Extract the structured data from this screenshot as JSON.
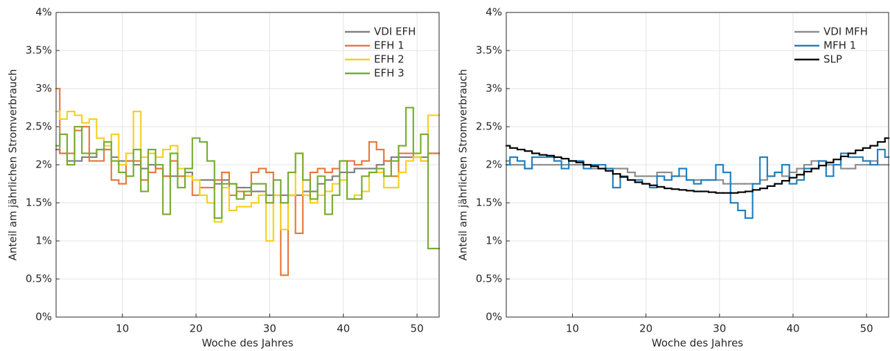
{
  "chart_data": [
    {
      "type": "stairs",
      "xlabel": "Woche des Jahres",
      "ylabel": "Anteil am jährlichen Stromverbrauch",
      "xlim": [
        1,
        53
      ],
      "xticks": [
        10,
        20,
        30,
        40,
        50
      ],
      "ylim": [
        0,
        4
      ],
      "yticks": [
        {
          "value": 0,
          "label": "0%"
        },
        {
          "value": 0.5,
          "label": "0.5%"
        },
        {
          "value": 1,
          "label": "1%"
        },
        {
          "value": 1.5,
          "label": "1.5%"
        },
        {
          "value": 2,
          "label": "2%"
        },
        {
          "value": 2.5,
          "label": "2.5%"
        },
        {
          "value": 3,
          "label": "3%"
        },
        {
          "value": 3.5,
          "label": "3.5%"
        },
        {
          "value": 4,
          "label": "4%"
        }
      ],
      "grid": true,
      "legend": "top-right",
      "series": [
        {
          "name": "VDI EFH",
          "color": "#808080",
          "values": [
            2.2,
            2.15,
            2.05,
            2.05,
            2.1,
            2.1,
            2.2,
            2.2,
            2.1,
            2.05,
            2.05,
            2.0,
            1.95,
            2.0,
            1.95,
            1.85,
            1.85,
            1.85,
            1.9,
            1.8,
            1.8,
            1.8,
            1.75,
            1.8,
            1.75,
            1.7,
            1.7,
            1.65,
            1.65,
            1.6,
            1.6,
            1.6,
            1.6,
            1.6,
            1.65,
            1.65,
            1.75,
            1.8,
            1.85,
            1.9,
            1.9,
            1.95,
            1.95,
            1.95,
            2.0,
            2.05,
            2.1,
            2.1,
            2.1,
            2.1,
            2.1,
            2.15,
            2.15
          ]
        },
        {
          "name": "EFH 1",
          "color": "#e8773a",
          "values": [
            3.0,
            2.15,
            2.15,
            2.45,
            2.5,
            2.05,
            2.05,
            2.2,
            1.8,
            1.75,
            2.05,
            2.05,
            1.8,
            1.9,
            1.95,
            1.85,
            2.05,
            1.85,
            1.85,
            1.6,
            1.7,
            1.7,
            1.8,
            1.9,
            1.6,
            1.65,
            1.6,
            1.9,
            1.95,
            1.9,
            1.6,
            0.55,
            1.6,
            1.1,
            1.6,
            1.9,
            1.95,
            1.9,
            1.95,
            2.05,
            2.05,
            2.0,
            2.05,
            2.3,
            2.2,
            2.05,
            1.85,
            2.15,
            2.15,
            2.1,
            2.05,
            2.15,
            2.15
          ]
        },
        {
          "name": "EFH 2",
          "color": "#f7cf1d",
          "values": [
            2.7,
            2.6,
            2.7,
            2.65,
            2.55,
            2.6,
            2.35,
            2.25,
            2.4,
            2.0,
            2.15,
            2.7,
            2.1,
            2.15,
            2.1,
            2.2,
            2.25,
            1.95,
            1.85,
            1.8,
            1.6,
            1.5,
            1.25,
            1.7,
            1.4,
            1.45,
            1.45,
            1.5,
            1.6,
            1.0,
            1.6,
            1.15,
            1.6,
            2.15,
            1.6,
            1.5,
            1.6,
            1.65,
            1.75,
            1.8,
            1.55,
            1.6,
            1.65,
            1.9,
            1.9,
            1.7,
            1.7,
            1.9,
            2.05,
            2.1,
            2.05,
            2.65,
            2.65
          ]
        },
        {
          "name": "EFH 3",
          "color": "#77ac30",
          "values": [
            2.25,
            2.4,
            2.0,
            2.5,
            2.15,
            2.15,
            2.2,
            2.3,
            2.05,
            1.9,
            1.85,
            2.2,
            1.65,
            2.2,
            2.0,
            1.35,
            2.15,
            1.7,
            1.95,
            2.35,
            2.3,
            2.05,
            1.3,
            1.75,
            1.75,
            1.55,
            1.65,
            1.75,
            1.75,
            1.5,
            1.8,
            1.5,
            1.9,
            2.15,
            1.8,
            1.55,
            1.85,
            1.35,
            1.6,
            2.05,
            1.55,
            1.55,
            1.85,
            1.9,
            1.95,
            1.85,
            2.05,
            2.25,
            2.75,
            2.15,
            2.4,
            0.9,
            0.9
          ]
        }
      ]
    },
    {
      "type": "stairs",
      "xlabel": "Woche des Jahres",
      "ylabel": "Anteil am jährlichen Stromverbrauch",
      "xlim": [
        1,
        53
      ],
      "xticks": [
        10,
        20,
        30,
        40,
        50
      ],
      "ylim": [
        0,
        4
      ],
      "yticks": [
        {
          "value": 0,
          "label": "0%"
        },
        {
          "value": 0.5,
          "label": "0.5%"
        },
        {
          "value": 1,
          "label": "1%"
        },
        {
          "value": 1.5,
          "label": "1.5%"
        },
        {
          "value": 2,
          "label": "2%"
        },
        {
          "value": 2.5,
          "label": "2.5%"
        },
        {
          "value": 3,
          "label": "3%"
        },
        {
          "value": 3.5,
          "label": "3.5%"
        },
        {
          "value": 4,
          "label": "4%"
        }
      ],
      "grid": true,
      "legend": "top-right",
      "series": [
        {
          "name": "VDI MFH",
          "color": "#8c8c8c",
          "values": [
            2.05,
            2.0,
            2.0,
            1.95,
            2.0,
            2.0,
            2.0,
            2.0,
            2.0,
            2.0,
            2.0,
            2.0,
            1.95,
            1.95,
            1.95,
            1.95,
            1.95,
            1.9,
            1.85,
            1.85,
            1.85,
            1.9,
            1.9,
            1.85,
            1.85,
            1.8,
            1.8,
            1.8,
            1.8,
            1.8,
            1.75,
            1.75,
            1.75,
            1.75,
            1.75,
            1.8,
            1.85,
            1.9,
            1.85,
            1.9,
            1.95,
            2.0,
            2.05,
            2.05,
            2.0,
            2.0,
            1.95,
            1.95,
            2.0,
            2.0,
            2.05,
            2.0,
            2.0
          ]
        },
        {
          "name": "MFH 1",
          "color": "#1f7fc0",
          "values": [
            2.0,
            2.1,
            2.05,
            1.95,
            2.1,
            2.1,
            2.1,
            2.05,
            1.95,
            2.05,
            2.05,
            1.95,
            2.0,
            2.0,
            1.95,
            1.7,
            1.85,
            1.8,
            1.8,
            1.75,
            1.7,
            1.85,
            1.8,
            1.85,
            1.95,
            1.8,
            1.75,
            1.8,
            1.8,
            2.0,
            1.9,
            1.5,
            1.4,
            1.3,
            1.75,
            2.1,
            1.85,
            1.9,
            2.0,
            1.75,
            1.8,
            1.95,
            1.95,
            2.05,
            1.85,
            2.0,
            2.15,
            2.1,
            2.1,
            2.05,
            2.0,
            2.2,
            2.1
          ]
        },
        {
          "name": "SLP",
          "color": "#000000",
          "values": [
            2.25,
            2.22,
            2.2,
            2.18,
            2.15,
            2.13,
            2.12,
            2.1,
            2.08,
            2.05,
            2.03,
            2.0,
            1.98,
            1.95,
            1.92,
            1.88,
            1.84,
            1.8,
            1.77,
            1.75,
            1.73,
            1.71,
            1.69,
            1.68,
            1.67,
            1.66,
            1.65,
            1.65,
            1.64,
            1.63,
            1.63,
            1.63,
            1.64,
            1.65,
            1.67,
            1.69,
            1.72,
            1.75,
            1.79,
            1.83,
            1.87,
            1.91,
            1.95,
            1.99,
            2.03,
            2.07,
            2.11,
            2.15,
            2.19,
            2.22,
            2.25,
            2.3,
            2.35
          ]
        }
      ]
    }
  ]
}
